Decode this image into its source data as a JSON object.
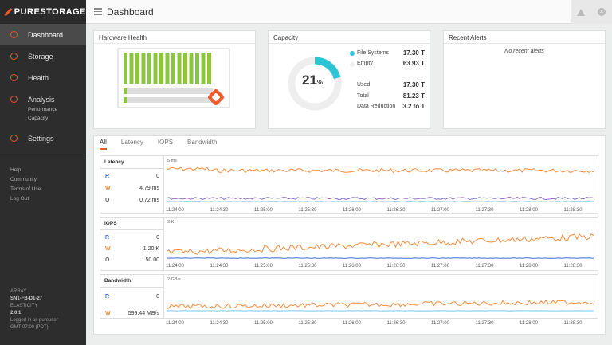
{
  "brand": "PURESTORAGE",
  "page_title": "Dashboard",
  "nav": [
    {
      "label": "Dashboard",
      "active": true
    },
    {
      "label": "Storage"
    },
    {
      "label": "Health"
    },
    {
      "label": "Analysis",
      "sub": [
        "Performance",
        "Capacity"
      ]
    },
    {
      "label": "Settings"
    }
  ],
  "links": [
    "Help",
    "Community",
    "Terms of Use",
    "Log Out"
  ],
  "array": {
    "label": "ARRAY",
    "name": "SN1-FB-D1-27",
    "elasticity_label": "ELASTICITY",
    "version": "2.0.1",
    "logged_in": "Logged in as pureuser",
    "tz": "GMT-07:00 (PDT)"
  },
  "panels": {
    "hardware": "Hardware Health",
    "capacity": "Capacity",
    "alerts": "Recent Alerts",
    "no_alerts": "No recent alerts"
  },
  "capacity": {
    "percent": "21",
    "percent_unit": "%",
    "fill": 0.21,
    "fs_label": "File Systems",
    "fs_val": "17.30 T",
    "empty_label": "Empty",
    "empty_val": "63.93 T",
    "used_label": "Used",
    "used_val": "17.30 T",
    "total_label": "Total",
    "total_val": "81.23 T",
    "dr_label": "Data Reduction",
    "dr_val": "3.2 to 1",
    "accent": "#2ec4d6"
  },
  "tabs": [
    "All",
    "Latency",
    "IOPS",
    "Bandwidth"
  ],
  "charts": {
    "latency": {
      "title": "Latency",
      "scale": "5 ms",
      "rows": [
        {
          "k": "R",
          "v": "0"
        },
        {
          "k": "W",
          "v": "4.79 ms"
        },
        {
          "k": "O",
          "v": "0.72 ms"
        }
      ]
    },
    "iops": {
      "title": "IOPS",
      "scale": "3 K",
      "rows": [
        {
          "k": "R",
          "v": "0"
        },
        {
          "k": "W",
          "v": "1.20 K"
        },
        {
          "k": "O",
          "v": "50.00"
        }
      ]
    },
    "bandwidth": {
      "title": "Bandwidth",
      "scale": "2 GB/s",
      "rows": [
        {
          "k": "R",
          "v": "0"
        },
        {
          "k": "W",
          "v": "599.44 MB/s"
        }
      ]
    }
  },
  "xticks": [
    "11:24:00",
    "11:24:30",
    "11:25:00",
    "11:25:30",
    "11:26:00",
    "11:26:30",
    "11:27:00",
    "11:27:30",
    "11:28:00",
    "11:28:30"
  ],
  "colors": {
    "orange": "#f58a3c",
    "purple": "#8f6bb5",
    "blue": "#3a6fd1",
    "teal": "#7ec8e3",
    "green": "#8cc63f"
  }
}
